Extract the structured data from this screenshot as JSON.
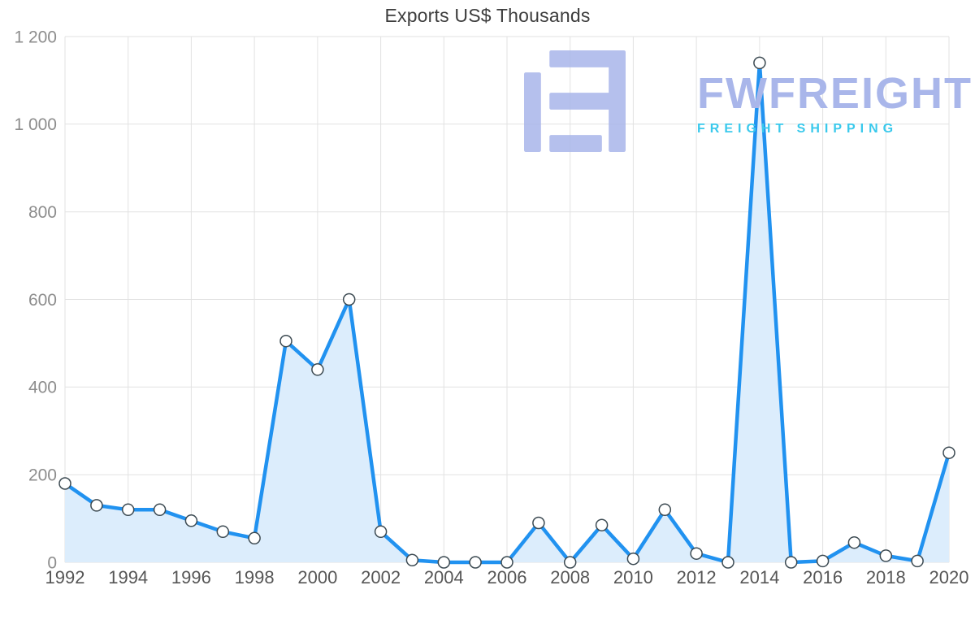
{
  "title": "Exports US$ Thousands",
  "watermark": {
    "brand": "FWFREIGHT",
    "tagline": "FREIGHT SHIPPING",
    "brand_color": "#a9b6ea",
    "tagline_color": "#3ac9ec",
    "logo_color": "#a9b6ea"
  },
  "chart_data": {
    "type": "area",
    "title": "Exports US$ Thousands",
    "x": [
      1992,
      1993,
      1994,
      1995,
      1996,
      1997,
      1998,
      1999,
      2000,
      2001,
      2002,
      2003,
      2004,
      2005,
      2006,
      2007,
      2008,
      2009,
      2010,
      2011,
      2012,
      2013,
      2014,
      2015,
      2016,
      2017,
      2018,
      2019,
      2020
    ],
    "values": [
      180,
      130,
      120,
      120,
      95,
      70,
      55,
      505,
      440,
      600,
      70,
      5,
      0,
      0,
      0,
      90,
      0,
      85,
      8,
      120,
      20,
      0,
      1140,
      0,
      3,
      45,
      15,
      3,
      250
    ],
    "xlabel": "",
    "ylabel": "",
    "ylim": [
      0,
      1200
    ],
    "yticks": [
      0,
      200,
      400,
      600,
      800,
      1000,
      1200
    ],
    "ytick_labels": [
      "0",
      "200",
      "400",
      "600",
      "800",
      "1 000",
      "1 200"
    ],
    "xticks": [
      1992,
      1994,
      1996,
      1998,
      2000,
      2002,
      2004,
      2006,
      2008,
      2010,
      2012,
      2014,
      2016,
      2018,
      2020
    ],
    "grid": true,
    "legend": "none",
    "grid_color": "#e2e2e2",
    "line_color": "#2192f0",
    "fill_color": "#dcedfc",
    "marker_fill": "#ffffff",
    "marker_outline": "#3c4a52"
  }
}
